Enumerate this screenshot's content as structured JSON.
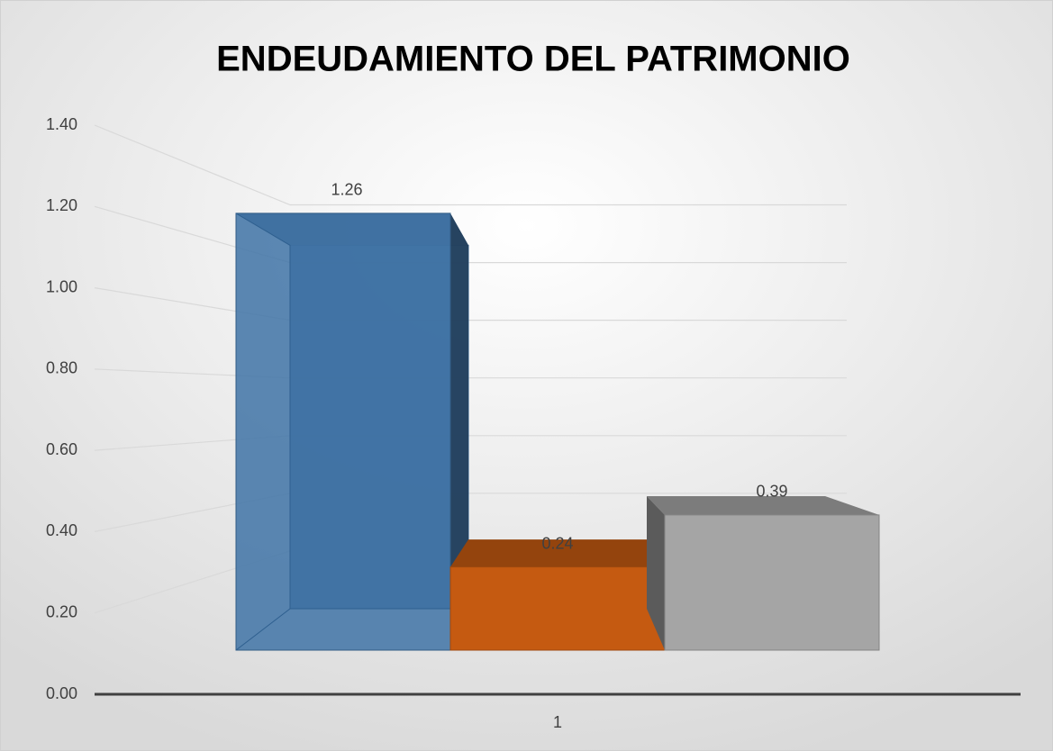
{
  "chart_data": {
    "type": "bar3d",
    "title": "ENDEUDAMIENTO DEL PATRIMONIO",
    "categories": [
      "1"
    ],
    "series": [
      {
        "color": "#3f73a6",
        "values": [
          1.26
        ]
      },
      {
        "color": "#c55a11",
        "values": [
          0.24
        ]
      },
      {
        "color": "#a5a5a5",
        "values": [
          0.39
        ]
      }
    ],
    "ylim": [
      0,
      1.4
    ],
    "yticks": [
      {
        "value": 0,
        "label": "0.00"
      },
      {
        "value": 0.2,
        "label": "0.20"
      },
      {
        "value": 0.4,
        "label": "0.40"
      },
      {
        "value": 0.6,
        "label": "0.60"
      },
      {
        "value": 0.8,
        "label": "0.80"
      },
      {
        "value": 1.0,
        "label": "1.00"
      },
      {
        "value": 1.2,
        "label": "1.20"
      },
      {
        "value": 1.4,
        "label": "1.40"
      }
    ],
    "grid": true
  }
}
